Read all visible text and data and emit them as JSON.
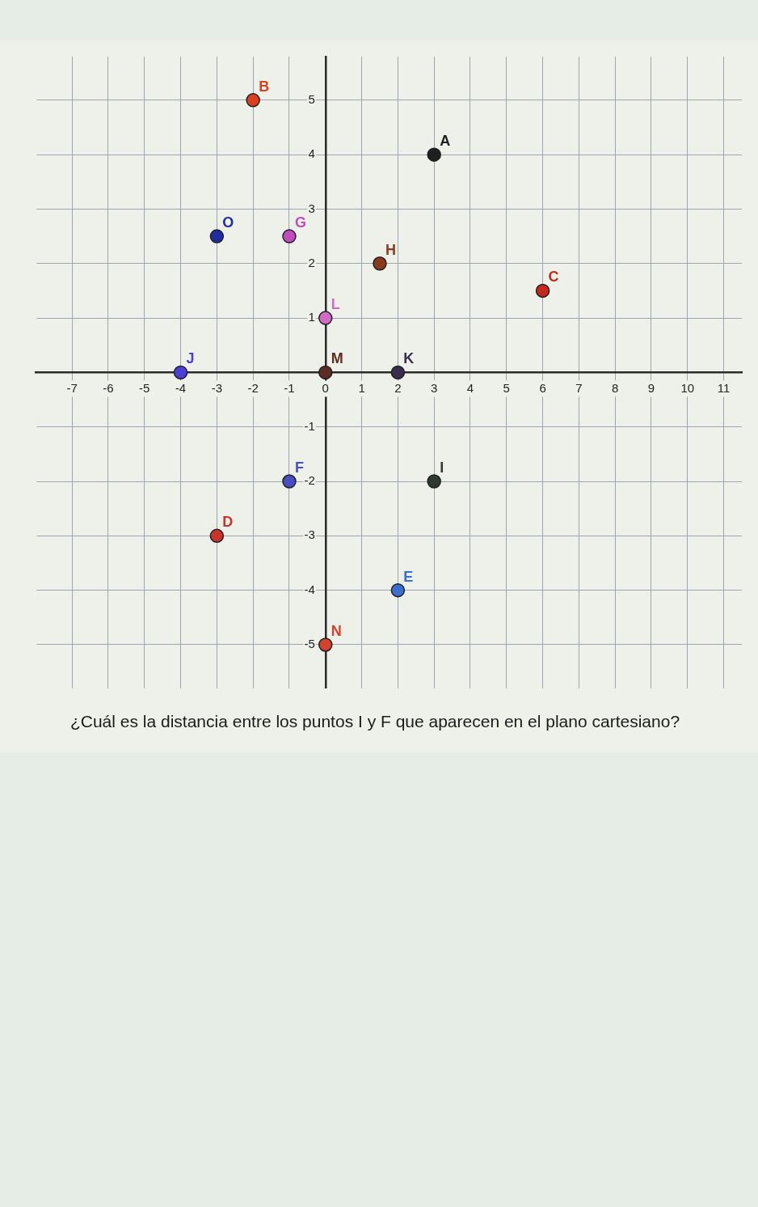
{
  "chart_data": {
    "type": "scatter",
    "title": "¿Cuál es la distancia entre los puntos I y F que aparecen en el plano cartesiano?",
    "series": [
      {
        "name": "A",
        "color": "#1f1f1f",
        "x": [
          3
        ],
        "values": [
          4
        ]
      },
      {
        "name": "B",
        "color": "#d8401f",
        "x": [
          -2
        ],
        "values": [
          5
        ]
      },
      {
        "name": "C",
        "color": "#c42a1c",
        "x": [
          6
        ],
        "values": [
          1.5
        ]
      },
      {
        "name": "D",
        "color": "#c8342c",
        "x": [
          -3
        ],
        "values": [
          -3
        ]
      },
      {
        "name": "E",
        "color": "#3a6fd0",
        "x": [
          2
        ],
        "values": [
          -4
        ]
      },
      {
        "name": "F",
        "color": "#4a4cc4",
        "x": [
          -1
        ],
        "values": [
          -2
        ]
      },
      {
        "name": "G",
        "color": "#c24bc0",
        "x": [
          -1
        ],
        "values": [
          2.5
        ]
      },
      {
        "name": "H",
        "color": "#8c3a1e",
        "x": [
          1.5
        ],
        "values": [
          2
        ]
      },
      {
        "name": "I",
        "color": "#2e3a30",
        "x": [
          3
        ],
        "values": [
          -2
        ]
      },
      {
        "name": "J",
        "color": "#4a3fd6",
        "x": [
          -4
        ],
        "values": [
          0
        ]
      },
      {
        "name": "K",
        "color": "#3a2c4c",
        "x": [
          2
        ],
        "values": [
          0
        ]
      },
      {
        "name": "L",
        "color": "#d46ac8",
        "x": [
          0
        ],
        "values": [
          1
        ]
      },
      {
        "name": "M",
        "color": "#5c2c22",
        "x": [
          0
        ],
        "values": [
          0
        ]
      },
      {
        "name": "N",
        "color": "#d0432f",
        "x": [
          0
        ],
        "values": [
          -5
        ]
      },
      {
        "name": "O",
        "color": "#1f2d9e",
        "x": [
          -3
        ],
        "values": [
          2.5
        ]
      }
    ],
    "xlim": [
      -8,
      11.5
    ],
    "ylim": [
      -5.8,
      5.8
    ],
    "xticks": [
      -7,
      -6,
      -5,
      -4,
      -3,
      -2,
      -1,
      0,
      1,
      2,
      3,
      4,
      5,
      6,
      7,
      8,
      9,
      10,
      11
    ],
    "yticks": [
      -5,
      -4,
      -3,
      -2,
      -1,
      1,
      2,
      3,
      4,
      5
    ],
    "grid": true,
    "marker": "circle"
  }
}
